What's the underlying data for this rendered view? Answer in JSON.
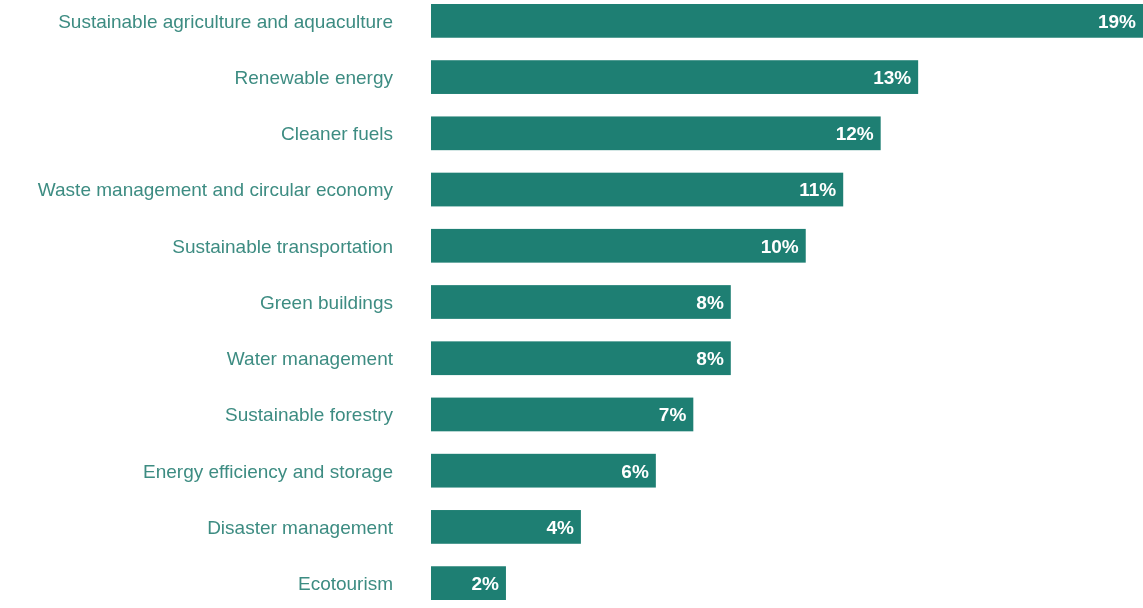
{
  "chart_data": {
    "type": "bar",
    "orientation": "horizontal",
    "categories": [
      "Sustainable agriculture and aquaculture",
      "Renewable energy",
      "Cleaner fuels",
      "Waste management and circular economy",
      "Sustainable transportation",
      "Green buildings",
      "Water management",
      "Sustainable forestry",
      "Energy efficiency and storage",
      "Disaster management",
      "Ecotourism"
    ],
    "values": [
      19,
      13,
      12,
      11,
      10,
      8,
      8,
      7,
      6,
      4,
      2
    ],
    "value_labels": [
      "19%",
      "13%",
      "12%",
      "11%",
      "10%",
      "8%",
      "8%",
      "7%",
      "6%",
      "4%",
      "2%"
    ],
    "color": "#1e7f73"
  }
}
